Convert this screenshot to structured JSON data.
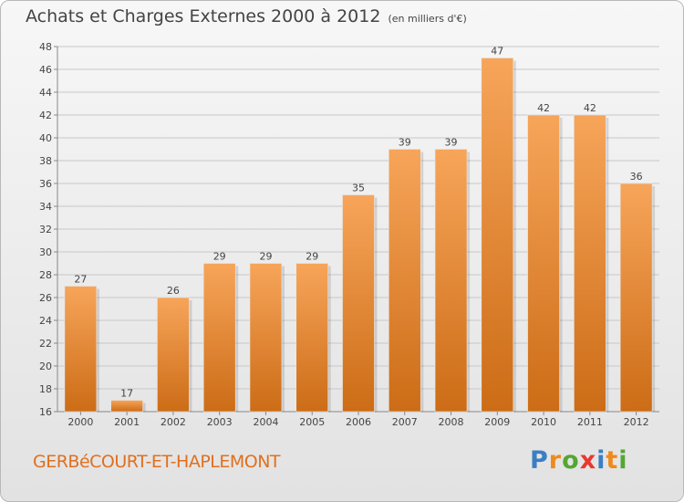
{
  "title": "Achats et Charges Externes 2000 à 2012",
  "subtitle": "(en milliers d'€)",
  "commune": "GERBéCOURT-ET-HAPLEMONT",
  "logo": {
    "text": "Proxiti",
    "letters": [
      {
        "char": "P",
        "color": "#3a7fc4"
      },
      {
        "char": "r",
        "color": "#f08a1c"
      },
      {
        "char": "o",
        "color": "#55a633"
      },
      {
        "char": "x",
        "color": "#e8382f"
      },
      {
        "char": "i",
        "color": "#3a7fc4"
      },
      {
        "char": "t",
        "color": "#f08a1c"
      },
      {
        "char": "i",
        "color": "#55a633"
      }
    ]
  },
  "colors": {
    "bar_top": "#f7a55a",
    "bar_bottom": "#cc6c16",
    "text": "#444444",
    "grid": "#c8c8c8"
  },
  "chart_data": {
    "type": "bar",
    "categories": [
      "2000",
      "2001",
      "2002",
      "2003",
      "2004",
      "2005",
      "2006",
      "2007",
      "2008",
      "2009",
      "2010",
      "2011",
      "2012"
    ],
    "values": [
      27,
      17,
      26,
      29,
      29,
      29,
      35,
      39,
      39,
      47,
      42,
      42,
      36
    ],
    "ylim": [
      16,
      48
    ],
    "yticks": [
      16,
      18,
      20,
      22,
      24,
      26,
      28,
      30,
      32,
      34,
      36,
      38,
      40,
      42,
      44,
      46,
      48
    ],
    "grid": true
  }
}
